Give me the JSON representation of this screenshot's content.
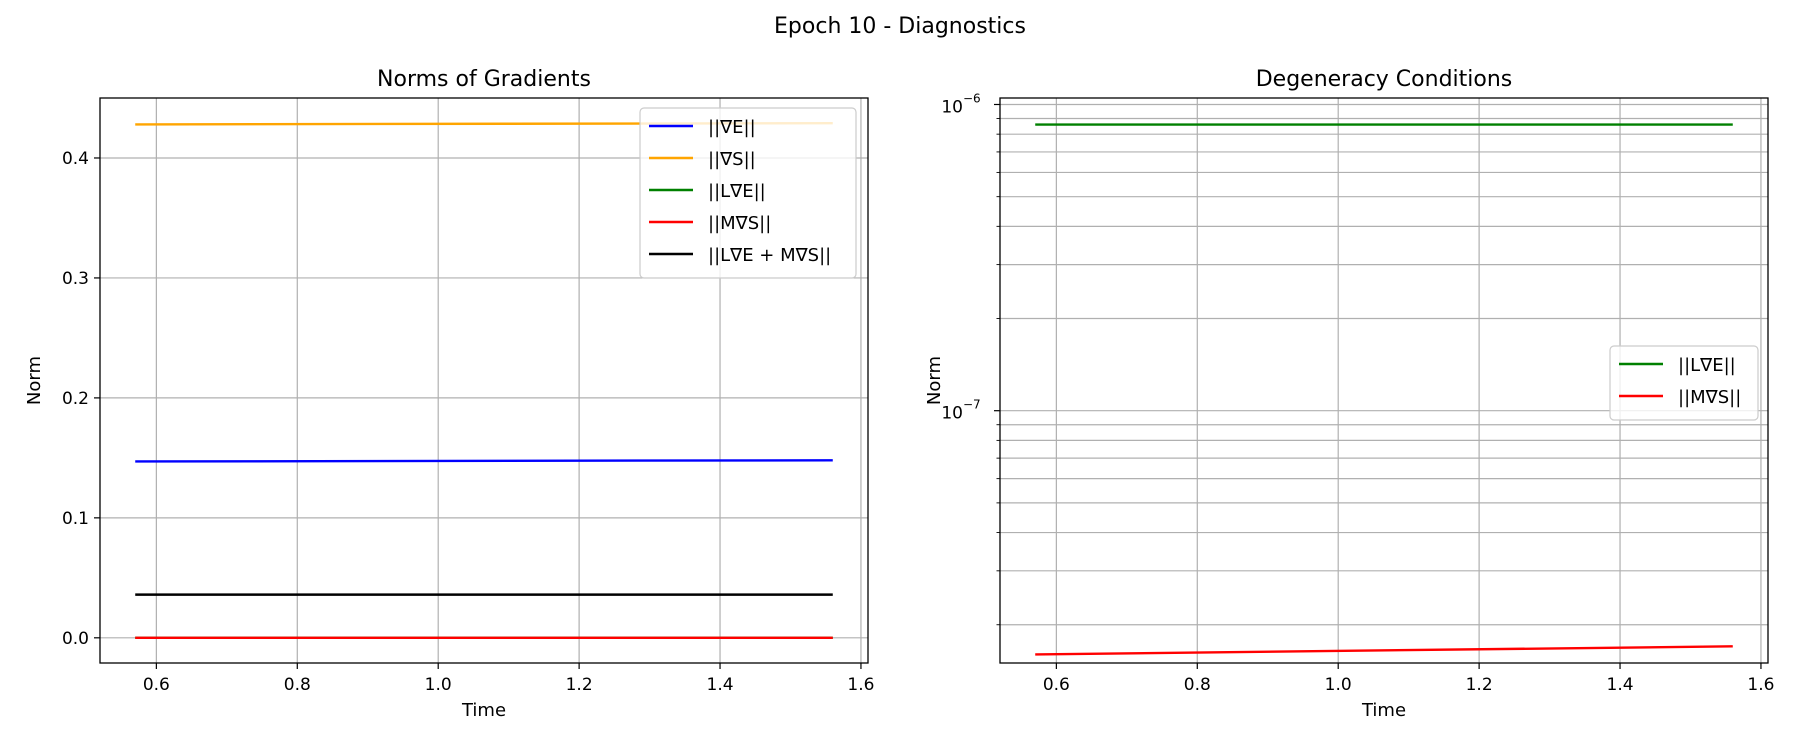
{
  "figure_title": "Epoch 10 - Diagnostics",
  "chart_data": [
    {
      "type": "line",
      "title": "Norms of Gradients",
      "xlabel": "Time",
      "ylabel": "Norm",
      "yscale": "linear",
      "xlim": [
        0.52,
        1.61
      ],
      "ylim": [
        -0.021,
        0.45
      ],
      "xticks": [
        0.6,
        0.8,
        1.0,
        1.2,
        1.4,
        1.6
      ],
      "xtick_labels": [
        "0.6",
        "0.8",
        "1.0",
        "1.2",
        "1.4",
        "1.6"
      ],
      "yticks": [
        0.0,
        0.1,
        0.2,
        0.3,
        0.4
      ],
      "ytick_labels": [
        "0.0",
        "0.1",
        "0.2",
        "0.3",
        "0.4"
      ],
      "grid": true,
      "legend_position": "top-right",
      "series": [
        {
          "name": "||∇E||",
          "color": "#0000ff",
          "x": [
            0.57,
            1.56
          ],
          "y": [
            0.147,
            0.148
          ]
        },
        {
          "name": "||∇S||",
          "color": "#ffa500",
          "x": [
            0.57,
            1.56
          ],
          "y": [
            0.428,
            0.429
          ]
        },
        {
          "name": "||L∇E||",
          "color": "#008000",
          "x": [
            0.57,
            1.56
          ],
          "y": [
            8.6e-07,
            8.6e-07
          ]
        },
        {
          "name": "||M∇S||",
          "color": "#ff0000",
          "x": [
            0.57,
            1.56
          ],
          "y": [
            1.6e-08,
            1.7e-08
          ]
        },
        {
          "name": "||L∇E + M∇S||",
          "color": "#000000",
          "x": [
            0.57,
            1.56
          ],
          "y": [
            0.036,
            0.036
          ]
        }
      ]
    },
    {
      "type": "line",
      "title": "Degeneracy Conditions",
      "xlabel": "Time",
      "ylabel": "Norm",
      "yscale": "log",
      "xlim": [
        0.52,
        1.61
      ],
      "ylim": [
        1.5e-08,
        1.05e-06
      ],
      "xticks": [
        0.6,
        0.8,
        1.0,
        1.2,
        1.4,
        1.6
      ],
      "xtick_labels": [
        "0.6",
        "0.8",
        "1.0",
        "1.2",
        "1.4",
        "1.6"
      ],
      "yticks": [
        1e-07,
        1e-06
      ],
      "ytick_labels": [
        {
          "base": "10",
          "exp": "−7"
        },
        {
          "base": "10",
          "exp": "−6"
        }
      ],
      "minor_yticks": [
        2e-08,
        3e-08,
        4e-08,
        5e-08,
        6e-08,
        7e-08,
        8e-08,
        9e-08,
        2e-07,
        3e-07,
        4e-07,
        5e-07,
        6e-07,
        7e-07,
        8e-07,
        9e-07
      ],
      "grid": true,
      "legend_position": "center-right",
      "series": [
        {
          "name": "||L∇E||",
          "color": "#008000",
          "x": [
            0.57,
            1.56
          ],
          "y": [
            8.6e-07,
            8.6e-07
          ]
        },
        {
          "name": "||M∇S||",
          "color": "#ff0000",
          "x": [
            0.57,
            1.56
          ],
          "y": [
            1.6e-08,
            1.7e-08
          ]
        }
      ]
    }
  ]
}
